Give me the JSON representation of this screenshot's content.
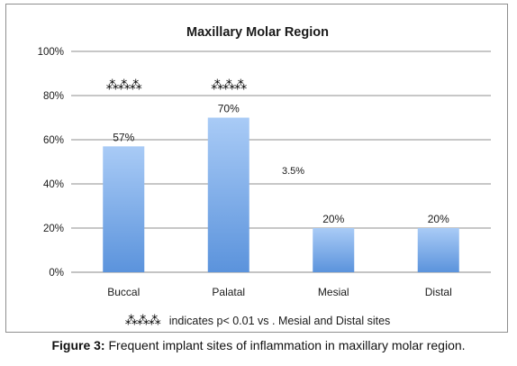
{
  "chart_data": {
    "type": "bar",
    "title": "Maxillary Molar Region",
    "categories": [
      "Buccal",
      "Palatal",
      "Mesial",
      "Distal"
    ],
    "values": [
      57,
      70,
      20,
      20
    ],
    "data_labels": [
      "57%",
      "70%",
      "20%",
      "20%"
    ],
    "ylim": [
      0,
      100
    ],
    "yticks": [
      0,
      20,
      40,
      60,
      80,
      100
    ],
    "ytick_labels": [
      "0%",
      "20%",
      "40%",
      "60%",
      "80%",
      "100%"
    ],
    "grid": true,
    "significance_marks": [
      {
        "category": "Buccal",
        "symbol": "⁂⁂⁂"
      },
      {
        "category": "Palatal",
        "symbol": "⁂⁂⁂"
      }
    ],
    "annotation": "3.5%",
    "footnote_symbol": "⁂⁂⁂",
    "footnote_text": "indicates p< 0.01 vs .  Mesial and  Distal  sites",
    "bar_color_top": "#a9cbf6",
    "bar_color_bottom": "#5b93dc"
  },
  "caption": {
    "label": "Figure 3:",
    "text": " Frequent implant sites of inflammation in maxillary molar region."
  }
}
